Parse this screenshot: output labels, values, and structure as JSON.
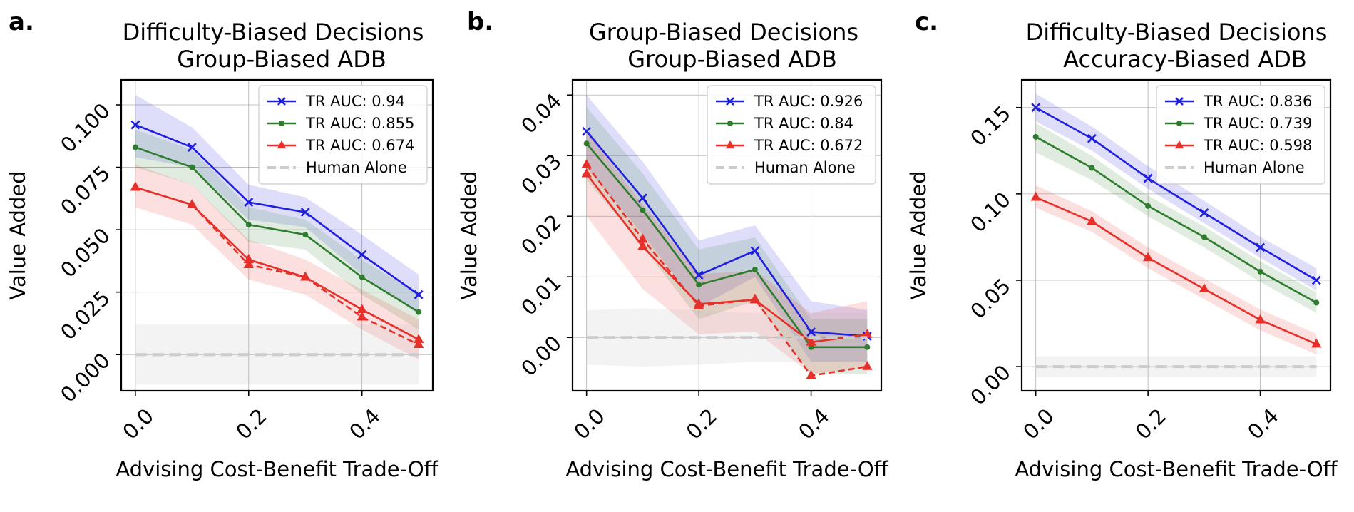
{
  "chart_data": [
    {
      "type": "line",
      "panel_label": "a.",
      "title": "Difficulty-Biased Decisions",
      "subtitle": "Group-Biased ADB",
      "xlabel": "Advising Cost-Benefit Trade-Off",
      "ylabel": "Value Added",
      "xlim": [
        -0.025,
        0.525
      ],
      "ylim": [
        -0.0145,
        0.11
      ],
      "xticks": [
        0.0,
        0.2,
        0.4
      ],
      "xtick_labels": [
        "0.0",
        "0.2",
        "0.4"
      ],
      "yticks": [
        0.0,
        0.025,
        0.05,
        0.075,
        0.1
      ],
      "ytick_labels": [
        "0.000",
        "0.025",
        "0.050",
        "0.075",
        "0.100"
      ],
      "grid": true,
      "legend_position": "top-right",
      "x": [
        0.0,
        0.1,
        0.2,
        0.3,
        0.4,
        0.5
      ],
      "series": [
        {
          "name": "TR AUC: 0.94",
          "color": "#1f1fe0",
          "marker": "x",
          "dashed": false,
          "values": [
            0.092,
            0.083,
            0.061,
            0.057,
            0.04,
            0.024
          ],
          "lower": [
            0.079,
            0.075,
            0.054,
            0.051,
            0.032,
            0.016
          ],
          "upper": [
            0.104,
            0.091,
            0.068,
            0.063,
            0.048,
            0.032
          ]
        },
        {
          "name": "TR AUC: 0.855",
          "color": "#2e7d2e",
          "marker": "dot",
          "dashed": false,
          "values": [
            0.083,
            0.075,
            0.052,
            0.048,
            0.031,
            0.017
          ],
          "lower": [
            0.075,
            0.068,
            0.045,
            0.042,
            0.024,
            0.01
          ],
          "upper": [
            0.09,
            0.082,
            0.059,
            0.054,
            0.038,
            0.024
          ]
        },
        {
          "name": "TR AUC: 0.674",
          "color": "#e8302a",
          "marker": "triangle",
          "dashed": false,
          "values": [
            0.067,
            0.06,
            0.038,
            0.031,
            0.018,
            0.006
          ],
          "lower": [
            0.059,
            0.052,
            0.03,
            0.024,
            0.01,
            -0.002
          ],
          "upper": [
            0.076,
            0.068,
            0.046,
            0.038,
            0.026,
            0.014
          ]
        },
        {
          "name": "",
          "color": "#e8302a",
          "marker": "triangle",
          "dashed": true,
          "values": [
            0.067,
            0.06,
            0.036,
            0.031,
            0.015,
            0.004
          ]
        },
        {
          "name": "Human Alone",
          "color": "#cccccc",
          "marker": "none",
          "dashed": true,
          "human": true,
          "values": [
            0.0,
            0.0,
            0.0,
            0.0,
            0.0,
            0.0
          ],
          "lower": [
            -0.012,
            -0.012,
            -0.012,
            -0.012,
            -0.012,
            -0.012
          ],
          "upper": [
            0.012,
            0.012,
            0.012,
            0.012,
            0.012,
            0.012
          ]
        }
      ]
    },
    {
      "type": "line",
      "panel_label": "b.",
      "title": "Group-Biased Decisions",
      "subtitle": "Group-Biased ADB",
      "xlabel": "Advising Cost-Benefit Trade-Off",
      "ylabel": "Value Added",
      "xlim": [
        -0.025,
        0.525
      ],
      "ylim": [
        -0.0088,
        0.0425
      ],
      "xticks": [
        0.0,
        0.2,
        0.4
      ],
      "xtick_labels": [
        "0.0",
        "0.2",
        "0.4"
      ],
      "yticks": [
        0.0,
        0.01,
        0.02,
        0.03,
        0.04
      ],
      "ytick_labels": [
        "0.00",
        "0.01",
        "0.02",
        "0.03",
        "0.04"
      ],
      "grid": true,
      "legend_position": "top-right",
      "x": [
        0.0,
        0.1,
        0.2,
        0.3,
        0.4,
        0.5
      ],
      "series": [
        {
          "name": "TR AUC: 0.926",
          "color": "#1f1fe0",
          "marker": "x",
          "dashed": false,
          "values": [
            0.034,
            0.023,
            0.0103,
            0.0143,
            0.0009,
            0.0002
          ],
          "lower": [
            0.028,
            0.017,
            0.005,
            0.01,
            -0.004,
            -0.004
          ],
          "upper": [
            0.04,
            0.029,
            0.016,
            0.0185,
            0.006,
            0.0045
          ]
        },
        {
          "name": "TR AUC: 0.84",
          "color": "#2e7d2e",
          "marker": "dot",
          "dashed": false,
          "values": [
            0.032,
            0.021,
            0.0087,
            0.0112,
            -0.0016,
            -0.0016
          ],
          "lower": [
            0.026,
            0.015,
            0.003,
            0.006,
            -0.006,
            -0.006
          ],
          "upper": [
            0.038,
            0.027,
            0.0145,
            0.0165,
            0.003,
            0.003
          ]
        },
        {
          "name": "TR AUC: 0.672",
          "color": "#e8302a",
          "marker": "triangle",
          "dashed": false,
          "values": [
            0.027,
            0.015,
            0.0055,
            0.0062,
            -0.0008,
            0.0005
          ],
          "lower": [
            0.02,
            0.008,
            0.0005,
            0.001,
            -0.006,
            -0.005
          ],
          "upper": [
            0.034,
            0.022,
            0.0105,
            0.011,
            0.004,
            0.006
          ]
        },
        {
          "name": "",
          "color": "#e8302a",
          "marker": "triangle",
          "dashed": true,
          "values": [
            0.0285,
            0.0162,
            0.0052,
            0.0063,
            -0.0063,
            -0.0048
          ]
        },
        {
          "name": "Human Alone",
          "color": "#cccccc",
          "marker": "none",
          "dashed": true,
          "human": true,
          "values": [
            0.0,
            0.0,
            0.0,
            0.0,
            0.0,
            0.0
          ],
          "lower": [
            -0.0045,
            -0.0048,
            -0.0045,
            -0.004,
            -0.004,
            -0.004
          ],
          "upper": [
            0.0045,
            0.0048,
            0.0045,
            0.004,
            0.004,
            0.004
          ]
        }
      ]
    },
    {
      "type": "line",
      "panel_label": "c.",
      "title": "Difficulty-Biased Decisions",
      "subtitle": "Accuracy-Biased ADB",
      "xlabel": "Advising Cost-Benefit Trade-Off",
      "ylabel": "Value Added",
      "xlim": [
        -0.025,
        0.525
      ],
      "ylim": [
        -0.014,
        0.166
      ],
      "xticks": [
        0.0,
        0.2,
        0.4
      ],
      "xtick_labels": [
        "0.0",
        "0.2",
        "0.4"
      ],
      "yticks": [
        0.0,
        0.05,
        0.1,
        0.15
      ],
      "ytick_labels": [
        "0.00",
        "0.05",
        "0.10",
        "0.15"
      ],
      "grid": true,
      "legend_position": "top-right",
      "x": [
        0.0,
        0.1,
        0.2,
        0.3,
        0.4,
        0.5
      ],
      "series": [
        {
          "name": "TR AUC: 0.836",
          "color": "#1f1fe0",
          "marker": "x",
          "dashed": false,
          "values": [
            0.15,
            0.132,
            0.109,
            0.089,
            0.069,
            0.05
          ],
          "lower": [
            0.142,
            0.125,
            0.103,
            0.083,
            0.063,
            0.044
          ],
          "upper": [
            0.158,
            0.139,
            0.116,
            0.096,
            0.075,
            0.057
          ]
        },
        {
          "name": "TR AUC: 0.739",
          "color": "#2e7d2e",
          "marker": "dot",
          "dashed": false,
          "values": [
            0.133,
            0.115,
            0.093,
            0.075,
            0.055,
            0.037
          ],
          "lower": [
            0.124,
            0.108,
            0.087,
            0.069,
            0.049,
            0.031
          ],
          "upper": [
            0.141,
            0.122,
            0.099,
            0.081,
            0.061,
            0.043
          ]
        },
        {
          "name": "TR AUC: 0.598",
          "color": "#e8302a",
          "marker": "triangle",
          "dashed": false,
          "values": [
            0.098,
            0.084,
            0.063,
            0.045,
            0.027,
            0.013
          ],
          "lower": [
            0.092,
            0.078,
            0.057,
            0.039,
            0.021,
            0.007
          ],
          "upper": [
            0.105,
            0.09,
            0.069,
            0.051,
            0.033,
            0.019
          ]
        },
        {
          "name": "Human Alone",
          "color": "#cccccc",
          "marker": "none",
          "dashed": true,
          "human": true,
          "values": [
            0.0,
            0.0,
            0.0,
            0.0,
            0.0,
            0.0
          ],
          "lower": [
            -0.006,
            -0.006,
            -0.006,
            -0.006,
            -0.006,
            -0.006
          ],
          "upper": [
            0.006,
            0.006,
            0.006,
            0.006,
            0.006,
            0.006
          ]
        }
      ]
    }
  ]
}
